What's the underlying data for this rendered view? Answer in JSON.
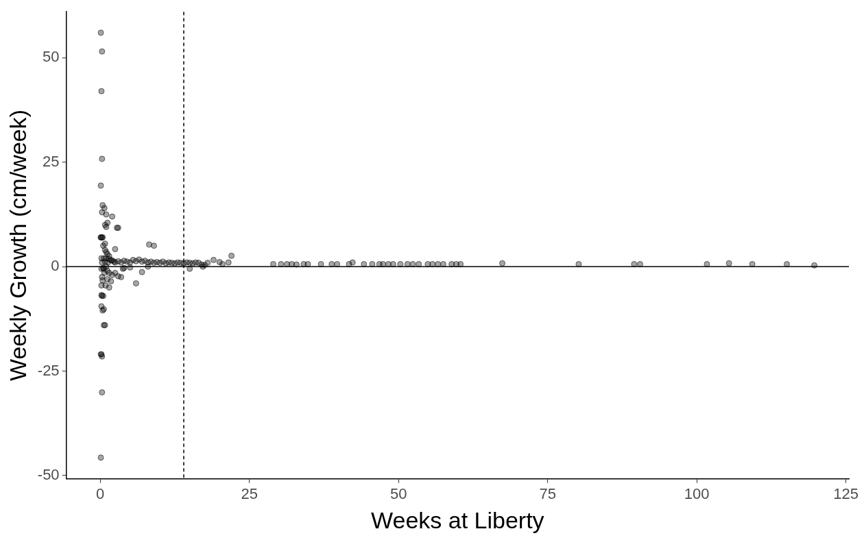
{
  "chart_data": {
    "type": "scatter",
    "xlabel": "Weeks at Liberty",
    "ylabel": "Weekly Growth (cm/week)",
    "color": "#000000",
    "marker": "circle",
    "grid": false,
    "legend": false,
    "x": [
      0.1,
      0.3,
      0.2,
      0.3,
      0.1,
      0.4,
      0.7,
      0.1,
      0.3,
      0.1,
      0.4,
      0.8,
      0.1,
      0.3,
      0.5,
      0.8,
      1,
      1.2,
      1.5,
      0.2,
      0.6,
      1,
      1.5,
      2,
      2.5,
      0.3,
      0.8,
      1.3,
      1.8,
      2.3,
      3,
      3.5,
      4,
      4.5,
      5,
      5.5,
      6,
      6.5,
      7,
      7.5,
      8,
      8.5,
      9,
      9.5,
      10,
      10.5,
      11,
      11.5,
      12,
      12.5,
      13,
      13.5,
      14,
      14.5,
      15,
      15.5,
      16,
      16.5,
      17,
      17.5,
      18,
      19,
      20,
      20.5,
      21.5,
      22,
      17.2,
      15,
      0.2,
      0.5,
      1,
      1.5,
      2,
      0.3,
      0.7,
      1.2,
      1.8,
      0.4,
      0.9,
      1.5,
      0.2,
      0.6,
      1.2,
      2.5,
      3,
      3.5,
      4,
      3.8,
      5,
      6,
      7,
      8,
      8.2,
      9,
      2.5,
      2.8,
      3,
      1.2,
      2,
      1,
      0.3,
      0.8,
      1,
      0.5,
      0.3,
      0.2,
      0.4,
      0.6,
      0.2,
      0.6,
      0.8,
      0.1,
      0.3,
      0.2,
      29,
      30.3,
      31.3,
      32.1,
      32.9,
      34.1,
      34.8,
      37,
      38.8,
      39.7,
      41.7,
      42.3,
      44.2,
      45.6,
      46.8,
      47.4,
      48.3,
      49.1,
      50.3,
      51.5,
      52.4,
      53.4,
      54.9,
      55.7,
      56.6,
      57.5,
      58.9,
      59.7,
      60.4,
      67.4,
      80.2,
      89.5,
      90.5,
      101.7,
      105.4,
      109.3,
      115.1,
      119.7
    ],
    "values": [
      56,
      51.5,
      42,
      25.8,
      19.4,
      14.7,
      14,
      7,
      7,
      7,
      7,
      5.5,
      -45.7,
      -30.1,
      5,
      4,
      3.5,
      3,
      2.5,
      2,
      2,
      2,
      1.8,
      1.5,
      1,
      1,
      1.2,
      1,
      1.5,
      1.2,
      1.3,
      1,
      1.4,
      1.2,
      1,
      1.6,
      1.3,
      1.7,
      1.2,
      1.4,
      1,
      1.2,
      0.9,
      1.1,
      0.9,
      1.2,
      0.8,
      1,
      0.9,
      0.8,
      1,
      0.9,
      0.8,
      1,
      0.9,
      0.8,
      1,
      0.9,
      0.5,
      0.4,
      0.9,
      1.6,
      1.1,
      0.6,
      1,
      2.6,
      0,
      -0.5,
      -0.5,
      -0.3,
      0,
      -1.5,
      -2,
      -2.5,
      -1.5,
      -3,
      -3.5,
      -3.3,
      -4.5,
      -5,
      -4.5,
      -0.5,
      -1,
      -1.5,
      -2.3,
      -2.5,
      -0.3,
      -0.5,
      -0.2,
      -4,
      -1.3,
      0,
      5.3,
      5,
      4.2,
      9.3,
      9.3,
      10.5,
      12,
      12.5,
      13,
      10,
      9.5,
      -7,
      -7,
      -6.8,
      -10.5,
      -10.2,
      -9.5,
      -14,
      -14,
      -21,
      -21.5,
      -21,
      0.6,
      0.6,
      0.6,
      0.6,
      0.5,
      0.6,
      0.6,
      0.6,
      0.6,
      0.6,
      0.6,
      1,
      0.6,
      0.6,
      0.6,
      0.6,
      0.6,
      0.6,
      0.6,
      0.6,
      0.6,
      0.6,
      0.6,
      0.6,
      0.6,
      0.6,
      0.6,
      0.6,
      0.6,
      0.8,
      0.6,
      0.6,
      0.6,
      0.6,
      0.8,
      0.6,
      0.6,
      0.3
    ],
    "xlim": [
      -5.7,
      125.5
    ],
    "xticks": [
      0,
      25,
      50,
      75,
      100,
      125
    ],
    "ylim": [
      -50.8,
      61
    ],
    "yticks": [
      -50,
      -25,
      0,
      25,
      50
    ],
    "ref_lines": [
      {
        "axis": "x",
        "value": 14,
        "line_style": "dashed",
        "color": "#000000"
      },
      {
        "axis": "y",
        "value": 0,
        "line_style": "solid",
        "color": "#000000"
      }
    ]
  }
}
